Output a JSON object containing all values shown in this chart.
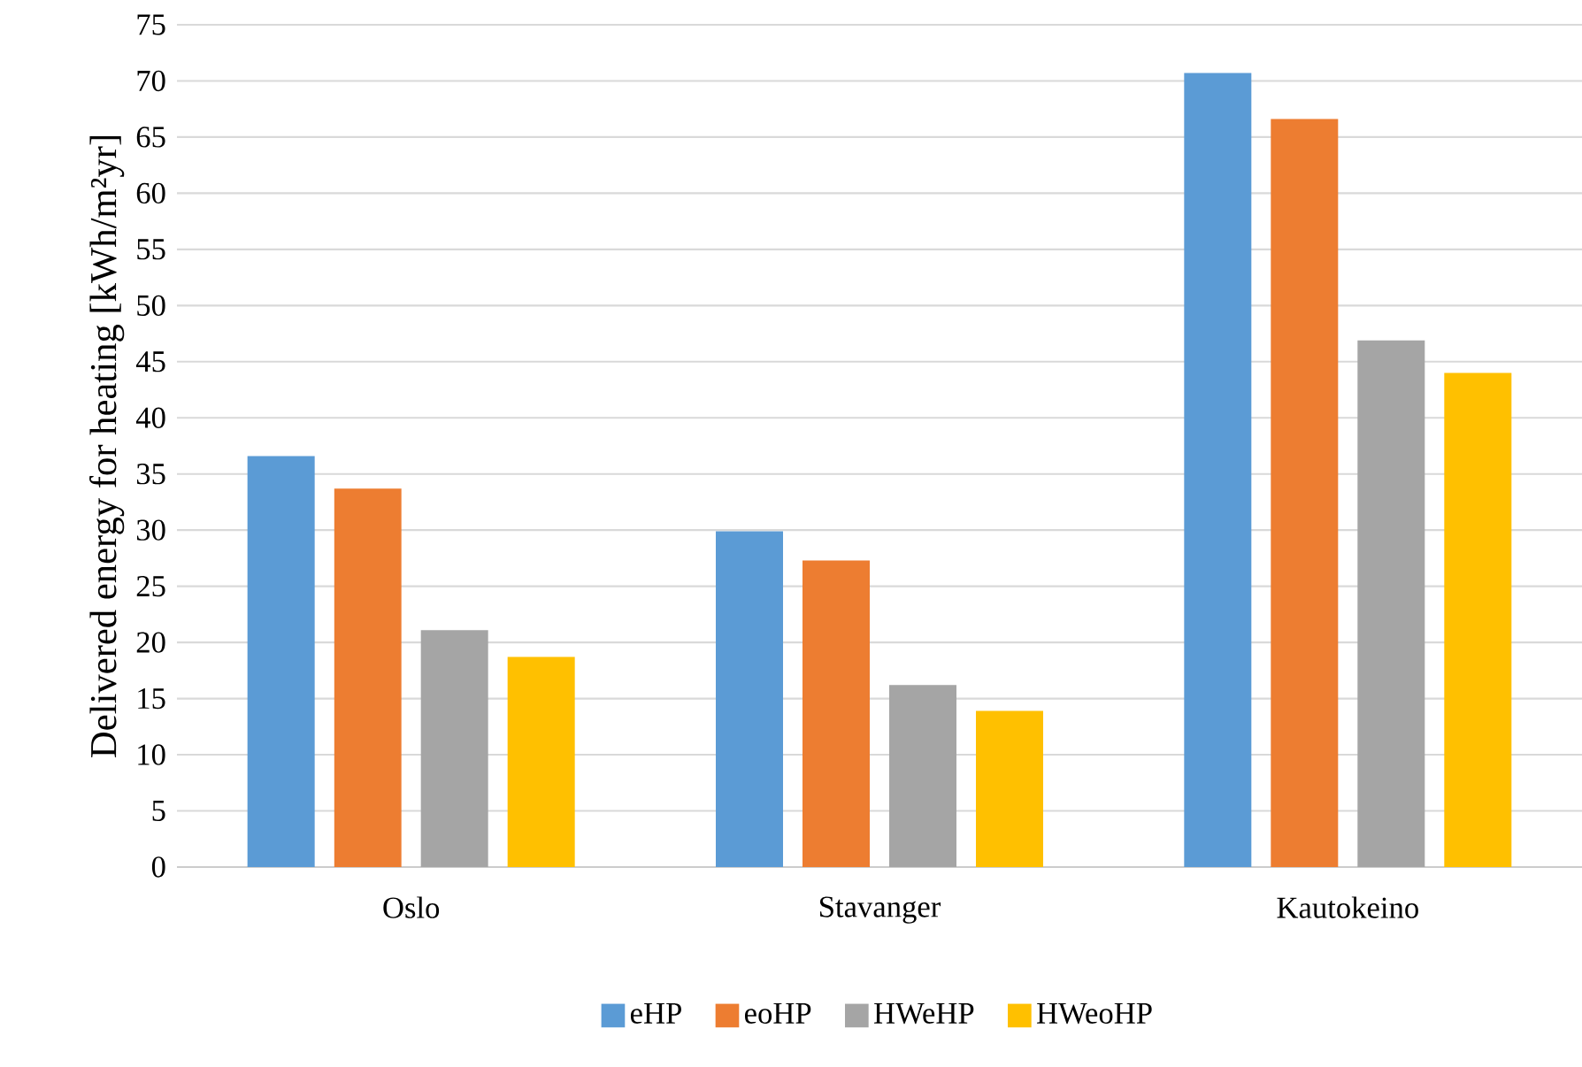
{
  "chart_data": {
    "type": "bar",
    "ylabel": "Delivered energy for heating [kWh/m²yr]",
    "categories": [
      "Oslo",
      "Stavanger",
      "Kautokeino"
    ],
    "series": [
      {
        "name": "eHP",
        "color": "#5b9bd5",
        "values": [
          36.6,
          29.9,
          70.7
        ]
      },
      {
        "name": "eoHP",
        "color": "#ed7d31",
        "values": [
          33.7,
          27.3,
          66.6
        ]
      },
      {
        "name": "HWeHP",
        "color": "#a5a5a5",
        "values": [
          21.1,
          16.2,
          46.9
        ]
      },
      {
        "name": "HWeoHP",
        "color": "#ffc000",
        "values": [
          18.7,
          13.9,
          44.0
        ]
      }
    ],
    "ylim": [
      0,
      75
    ],
    "yticks": [
      0,
      5,
      10,
      15,
      20,
      25,
      30,
      35,
      40,
      45,
      50,
      55,
      60,
      65,
      70,
      75
    ],
    "grid": "y",
    "legend": "bottom"
  }
}
